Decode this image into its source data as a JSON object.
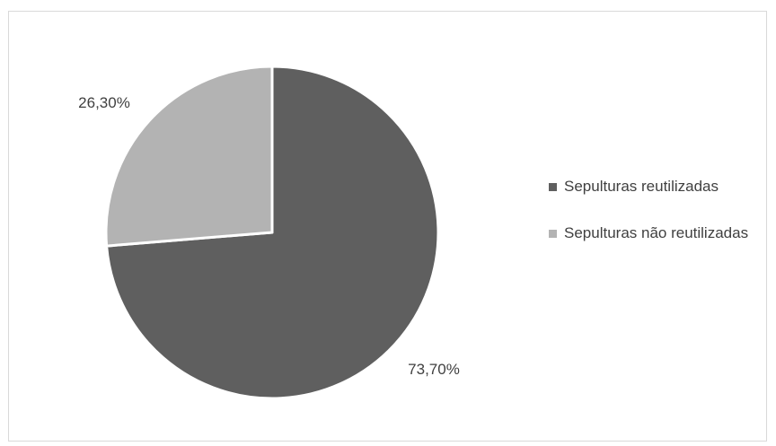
{
  "chart_data": {
    "type": "pie",
    "categories": [
      "Sepulturas reutilizadas",
      "Sepulturas não reutilizadas"
    ],
    "values": [
      73.7,
      26.3
    ],
    "value_labels": [
      "73,70%",
      "26,30%"
    ],
    "colors": [
      "#5f5f5f",
      "#b3b3b3"
    ],
    "title": "",
    "legend_position": "right"
  }
}
